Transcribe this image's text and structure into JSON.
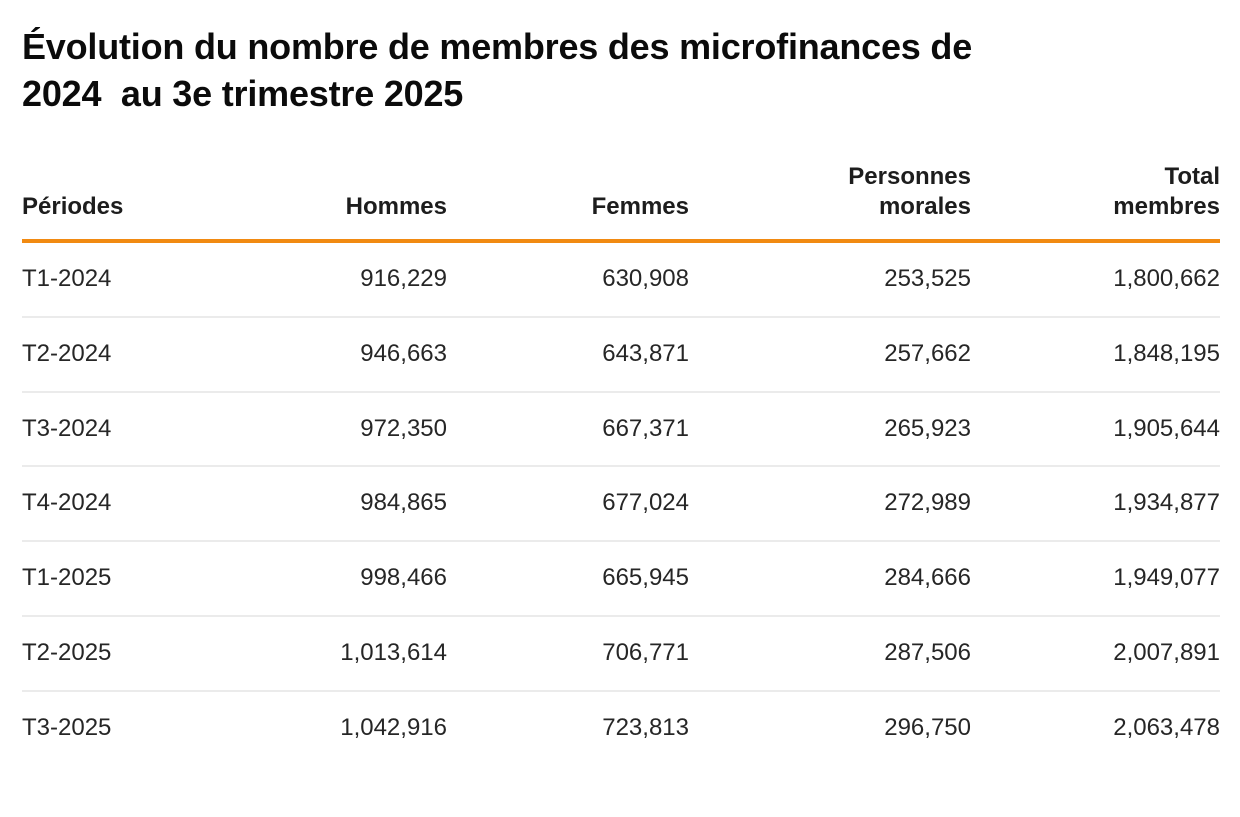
{
  "title": "Évolution du nombre de membres des microfinances de\n2024  au 3e trimestre 2025",
  "accent_color": "#F18A12",
  "divider_color": "#ebebeb",
  "table": {
    "columns": [
      {
        "key": "periodes",
        "label": "Périodes",
        "align": "left"
      },
      {
        "key": "hommes",
        "label": "Hommes",
        "align": "right"
      },
      {
        "key": "femmes",
        "label": "Femmes",
        "align": "right"
      },
      {
        "key": "personnes-morales",
        "label": "Personnes\nmorales",
        "align": "right"
      },
      {
        "key": "total-membres",
        "label": "Total\nmembres",
        "align": "right"
      }
    ],
    "rows": [
      [
        "T1-2024",
        "916,229",
        "630,908",
        "253,525",
        "1,800,662"
      ],
      [
        "T2-2024",
        "946,663",
        "643,871",
        "257,662",
        "1,848,195"
      ],
      [
        "T3-2024",
        "972,350",
        "667,371",
        "265,923",
        "1,905,644"
      ],
      [
        "T4-2024",
        "984,865",
        "677,024",
        "272,989",
        "1,934,877"
      ],
      [
        "T1-2025",
        "998,466",
        "665,945",
        "284,666",
        "1,949,077"
      ],
      [
        "T2-2025",
        "1,013,614",
        "706,771",
        "287,506",
        "2,007,891"
      ],
      [
        "T3-2025",
        "1,042,916",
        "723,813",
        "296,750",
        "2,063,478"
      ]
    ]
  },
  "chart_data": {
    "type": "table",
    "title": "Évolution du nombre de membres des microfinances de 2024 au 3e trimestre 2025",
    "categories": [
      "T1-2024",
      "T2-2024",
      "T3-2024",
      "T4-2024",
      "T1-2025",
      "T2-2025",
      "T3-2025"
    ],
    "series": [
      {
        "name": "Hommes",
        "values": [
          916229,
          946663,
          972350,
          984865,
          998466,
          1013614,
          1042916
        ]
      },
      {
        "name": "Femmes",
        "values": [
          630908,
          643871,
          667371,
          677024,
          665945,
          706771,
          723813
        ]
      },
      {
        "name": "Personnes morales",
        "values": [
          253525,
          257662,
          265923,
          272989,
          284666,
          287506,
          296750
        ]
      },
      {
        "name": "Total membres",
        "values": [
          1800662,
          1848195,
          1905644,
          1934877,
          1949077,
          2007891,
          2063478
        ]
      }
    ],
    "legend_position": "none",
    "grid": "horizontal-row-dividers"
  }
}
